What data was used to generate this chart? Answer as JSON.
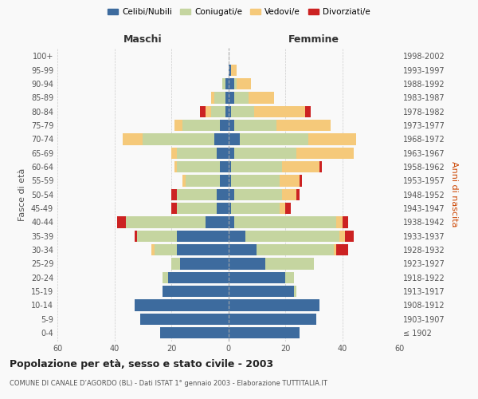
{
  "age_groups": [
    "100+",
    "95-99",
    "90-94",
    "85-89",
    "80-84",
    "75-79",
    "70-74",
    "65-69",
    "60-64",
    "55-59",
    "50-54",
    "45-49",
    "40-44",
    "35-39",
    "30-34",
    "25-29",
    "20-24",
    "15-19",
    "10-14",
    "5-9",
    "0-4"
  ],
  "birth_years": [
    "≤ 1902",
    "1903-1907",
    "1908-1912",
    "1913-1917",
    "1918-1922",
    "1923-1927",
    "1928-1932",
    "1933-1937",
    "1938-1942",
    "1943-1947",
    "1948-1952",
    "1953-1957",
    "1958-1962",
    "1963-1967",
    "1968-1972",
    "1973-1977",
    "1978-1982",
    "1983-1987",
    "1988-1992",
    "1993-1997",
    "1998-2002"
  ],
  "maschi": {
    "celibe": [
      0,
      0,
      1,
      1,
      1,
      3,
      5,
      4,
      3,
      3,
      4,
      4,
      8,
      18,
      18,
      17,
      21,
      23,
      33,
      31,
      24
    ],
    "coniugato": [
      0,
      0,
      1,
      4,
      5,
      13,
      25,
      14,
      15,
      12,
      14,
      14,
      28,
      14,
      8,
      3,
      2,
      0,
      0,
      0,
      0
    ],
    "vedovo": [
      0,
      0,
      0,
      1,
      2,
      3,
      7,
      2,
      1,
      1,
      0,
      0,
      0,
      0,
      1,
      0,
      0,
      0,
      0,
      0,
      0
    ],
    "divorziato": [
      0,
      0,
      0,
      0,
      2,
      0,
      0,
      0,
      0,
      0,
      2,
      2,
      3,
      1,
      0,
      0,
      0,
      0,
      0,
      0,
      0
    ]
  },
  "femmine": {
    "nubile": [
      0,
      1,
      2,
      2,
      1,
      2,
      4,
      2,
      1,
      1,
      2,
      1,
      2,
      6,
      10,
      13,
      20,
      23,
      32,
      31,
      25
    ],
    "coniugata": [
      0,
      0,
      1,
      5,
      8,
      15,
      24,
      22,
      18,
      17,
      17,
      17,
      36,
      33,
      27,
      17,
      3,
      1,
      0,
      0,
      0
    ],
    "vedova": [
      0,
      2,
      5,
      9,
      18,
      19,
      17,
      20,
      13,
      7,
      5,
      2,
      2,
      2,
      1,
      0,
      0,
      0,
      0,
      0,
      0
    ],
    "divorziata": [
      0,
      0,
      0,
      0,
      2,
      0,
      0,
      0,
      1,
      1,
      1,
      2,
      2,
      3,
      4,
      0,
      0,
      0,
      0,
      0,
      0
    ]
  },
  "colors": {
    "celibe": "#3d6b9e",
    "coniugato": "#c5d5a0",
    "vedovo": "#f5c97a",
    "divorziato": "#cc2222"
  },
  "legend_labels": [
    "Celibi/Nubili",
    "Coniugati/e",
    "Vedovi/e",
    "Divorziati/e"
  ],
  "title": "Popolazione per età, sesso e stato civile - 2003",
  "subtitle": "COMUNE DI CANALE D’AGORDO (BL) - Dati ISTAT 1° gennaio 2003 - Elaborazione TUTTITALIA.IT",
  "xlabel_left": "Maschi",
  "xlabel_right": "Femmine",
  "ylabel_left": "Fasce di età",
  "ylabel_right": "Anni di nascita",
  "xlim": 60,
  "bg_color": "#f9f9f9",
  "grid_color": "#cccccc"
}
